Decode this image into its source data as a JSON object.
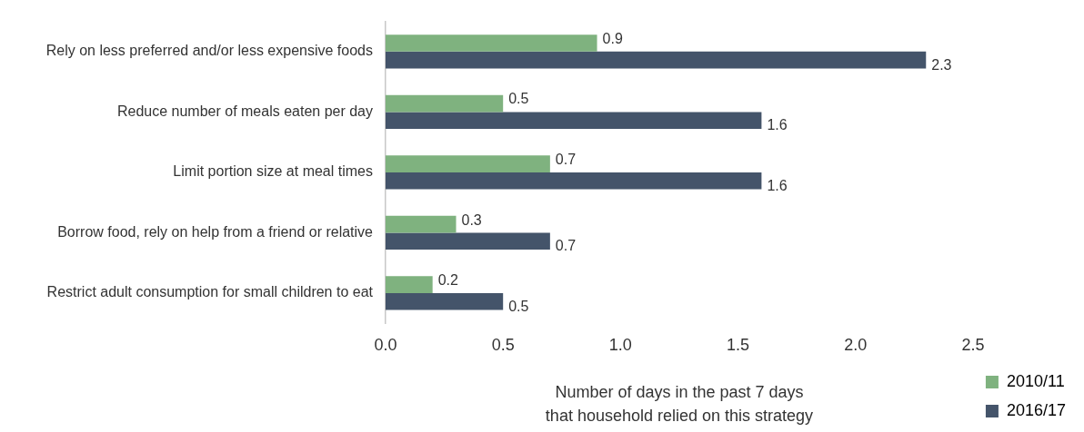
{
  "chart_data": {
    "type": "bar",
    "orientation": "horizontal",
    "categories": [
      "Rely on less preferred and/or less expensive foods",
      "Reduce number of meals eaten per day",
      "Limit portion size at meal times",
      "Borrow food, rely on help from a friend or relative",
      "Restrict adult consumption for small children to eat"
    ],
    "series": [
      {
        "name": "2010/11",
        "color": "#7fb27f",
        "values": [
          0.9,
          0.5,
          0.7,
          0.3,
          0.2
        ]
      },
      {
        "name": "2016/17",
        "color": "#44546a",
        "values": [
          2.3,
          1.6,
          1.6,
          0.7,
          0.5
        ]
      }
    ],
    "xlabel": "Number of days in the past 7 days that household relied on this strategy",
    "xlim": [
      0,
      2.5
    ],
    "xticks": [
      {
        "value": 0,
        "label": "0.0"
      },
      {
        "value": 0.5,
        "label": "0.5"
      },
      {
        "value": 1,
        "label": "1.0"
      },
      {
        "value": 1.5,
        "label": "1.5"
      },
      {
        "value": 2,
        "label": "2.0"
      },
      {
        "value": 2.5,
        "label": "2.5"
      }
    ],
    "data_labels": true,
    "grid": false,
    "legend": "right"
  }
}
